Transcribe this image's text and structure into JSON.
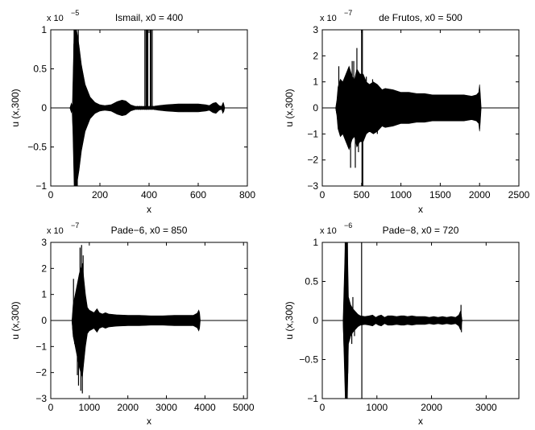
{
  "figure": {
    "background": "#ffffff",
    "ink": "#000000"
  },
  "chart_data": [
    {
      "type": "line",
      "title": "Ismail, x0 = 400",
      "xlabel": "x",
      "ylabel": "u (x,300)",
      "y_multiplier": {
        "base": "x 10",
        "exponent": "−5"
      },
      "xlim": [
        0,
        800
      ],
      "ylim": [
        -1,
        1
      ],
      "x_ticks": [
        0,
        200,
        400,
        600,
        800
      ],
      "x_tick_labels": [
        "0",
        "200",
        "400",
        "600",
        "800"
      ],
      "y_ticks": [
        -1,
        -0.5,
        0,
        0.5,
        1
      ],
      "y_tick_labels": [
        "−1",
        "−0.5",
        "0",
        "0.5",
        "1"
      ],
      "grid": false,
      "series": [
        {
          "style": "oscillating-envelope",
          "start": 78,
          "end": 708,
          "envelope": [
            [
              78,
              0
            ],
            [
              84,
              0.06
            ],
            [
              88,
              0.02
            ],
            [
              95,
              1
            ],
            [
              105,
              1
            ],
            [
              115,
              0.8
            ],
            [
              125,
              0.55
            ],
            [
              140,
              0.3
            ],
            [
              160,
              0.14
            ],
            [
              180,
              0.07
            ],
            [
              200,
              0.04
            ],
            [
              220,
              0.03
            ],
            [
              245,
              0.04
            ],
            [
              270,
              0.08
            ],
            [
              290,
              0.1
            ],
            [
              305,
              0.09
            ],
            [
              325,
              0.04
            ],
            [
              345,
              0.02
            ],
            [
              370,
              0.02
            ],
            [
              395,
              0.02
            ],
            [
              420,
              0.02
            ],
            [
              440,
              0.03
            ],
            [
              470,
              0.04
            ],
            [
              520,
              0.05
            ],
            [
              560,
              0.05
            ],
            [
              600,
              0.05
            ],
            [
              630,
              0.04
            ],
            [
              645,
              0.03
            ],
            [
              660,
              0.06
            ],
            [
              672,
              0.07
            ],
            [
              685,
              0.03
            ],
            [
              695,
              0.02
            ],
            [
              700,
              0.06
            ],
            [
              704,
              0.05
            ],
            [
              708,
              0
            ]
          ],
          "spikes": [
            [
              95,
              1
            ],
            [
              100,
              -1
            ],
            [
              103,
              1
            ],
            [
              108,
              -1
            ],
            [
              112,
              1
            ],
            [
              383,
              1
            ],
            [
              385,
              -0.02
            ],
            [
              388,
              1
            ],
            [
              392,
              1
            ],
            [
              395,
              1
            ],
            [
              400,
              -0.01
            ],
            [
              405,
              1
            ],
            [
              408,
              1
            ],
            [
              413,
              1
            ],
            [
              700,
              -0.07
            ],
            [
              702,
              0.07
            ]
          ]
        }
      ]
    },
    {
      "type": "line",
      "title": "de Frutos, x0 = 500",
      "xlabel": "x",
      "ylabel": "u (x,300)",
      "y_multiplier": {
        "base": "x 10",
        "exponent": "−7"
      },
      "xlim": [
        0,
        2500
      ],
      "ylim": [
        -3,
        3
      ],
      "x_ticks": [
        0,
        500,
        1000,
        1500,
        2000,
        2500
      ],
      "x_tick_labels": [
        "0",
        "500",
        "1000",
        "1500",
        "2000",
        "2500"
      ],
      "y_ticks": [
        -3,
        -2,
        -1,
        0,
        1,
        2,
        3
      ],
      "y_tick_labels": [
        "−3",
        "−2",
        "−1",
        "0",
        "1",
        "2",
        "3"
      ],
      "grid": false,
      "series": [
        {
          "style": "oscillating-envelope",
          "start": 170,
          "end": 2020,
          "envelope": [
            [
              170,
              0
            ],
            [
              185,
              0.3
            ],
            [
              200,
              0.8
            ],
            [
              230,
              1.1
            ],
            [
              260,
              1.0
            ],
            [
              300,
              1.3
            ],
            [
              340,
              1.6
            ],
            [
              380,
              1.2
            ],
            [
              410,
              1.1
            ],
            [
              440,
              1.5
            ],
            [
              480,
              1.3
            ],
            [
              520,
              1.3
            ],
            [
              560,
              1.0
            ],
            [
              600,
              0.9
            ],
            [
              650,
              1.0
            ],
            [
              700,
              0.9
            ],
            [
              760,
              0.7
            ],
            [
              800,
              0.75
            ],
            [
              900,
              0.7
            ],
            [
              1000,
              0.6
            ],
            [
              1100,
              0.6
            ],
            [
              1200,
              0.55
            ],
            [
              1300,
              0.55
            ],
            [
              1400,
              0.5
            ],
            [
              1500,
              0.5
            ],
            [
              1600,
              0.5
            ],
            [
              1700,
              0.5
            ],
            [
              1800,
              0.5
            ],
            [
              1900,
              0.45
            ],
            [
              1960,
              0.5
            ],
            [
              1990,
              0.6
            ],
            [
              2000,
              0.9
            ],
            [
              2008,
              0.6
            ],
            [
              2020,
              0
            ]
          ],
          "spikes": [
            [
              210,
              1.6
            ],
            [
              230,
              -1.0
            ],
            [
              330,
              -1.5
            ],
            [
              360,
              -2.3
            ],
            [
              380,
              1.8
            ],
            [
              400,
              1.8
            ],
            [
              420,
              -2.3
            ],
            [
              440,
              2.3
            ],
            [
              460,
              -1.7
            ],
            [
              500,
              3
            ],
            [
              505,
              -3
            ],
            [
              510,
              3
            ],
            [
              515,
              -3
            ],
            [
              560,
              1.2
            ],
            [
              640,
              1.1
            ],
            [
              700,
              -1.0
            ]
          ]
        }
      ]
    },
    {
      "type": "line",
      "title": "Pade−6, x0 = 850",
      "xlabel": "x",
      "ylabel": "u (x,300)",
      "y_multiplier": {
        "base": "x 10",
        "exponent": "−7"
      },
      "xlim": [
        0,
        5100
      ],
      "ylim": [
        -3,
        3
      ],
      "x_ticks": [
        0,
        1000,
        2000,
        3000,
        4000,
        5000
      ],
      "x_tick_labels": [
        "0",
        "1000",
        "2000",
        "3000",
        "4000",
        "5000"
      ],
      "y_ticks": [
        -3,
        -2,
        -1,
        0,
        1,
        2,
        3
      ],
      "y_tick_labels": [
        "−3",
        "−2",
        "−1",
        "0",
        "1",
        "2",
        "3"
      ],
      "grid": false,
      "series": [
        {
          "style": "oscillating-envelope",
          "start": 550,
          "end": 3880,
          "envelope": [
            [
              550,
              0
            ],
            [
              580,
              0.6
            ],
            [
              620,
              0.9
            ],
            [
              660,
              1.2
            ],
            [
              700,
              1.5
            ],
            [
              740,
              1.8
            ],
            [
              780,
              2.0
            ],
            [
              820,
              2.2
            ],
            [
              860,
              1.6
            ],
            [
              900,
              1.0
            ],
            [
              950,
              0.5
            ],
            [
              1000,
              0.4
            ],
            [
              1060,
              0.35
            ],
            [
              1120,
              0.3
            ],
            [
              1200,
              0.45
            ],
            [
              1260,
              0.3
            ],
            [
              1340,
              0.25
            ],
            [
              1420,
              0.3
            ],
            [
              1500,
              0.25
            ],
            [
              1700,
              0.22
            ],
            [
              2000,
              0.2
            ],
            [
              2300,
              0.2
            ],
            [
              2600,
              0.18
            ],
            [
              2900,
              0.18
            ],
            [
              3200,
              0.2
            ],
            [
              3500,
              0.2
            ],
            [
              3700,
              0.2
            ],
            [
              3800,
              0.28
            ],
            [
              3840,
              0.4
            ],
            [
              3860,
              0.3
            ],
            [
              3880,
              0
            ]
          ],
          "spikes": [
            [
              590,
              1.6
            ],
            [
              620,
              -0.9
            ],
            [
              690,
              -2.1
            ],
            [
              720,
              -2.5
            ],
            [
              760,
              2.8
            ],
            [
              780,
              -2.7
            ],
            [
              800,
              2.9
            ],
            [
              820,
              -2.8
            ],
            [
              840,
              2.5
            ],
            [
              870,
              -1.2
            ]
          ]
        }
      ]
    },
    {
      "type": "line",
      "title": "Pade−8, x0 = 720",
      "xlabel": "x",
      "ylabel": "u (x,300)",
      "y_multiplier": {
        "base": "x 10",
        "exponent": "−6"
      },
      "xlim": [
        0,
        3600
      ],
      "ylim": [
        -1,
        1
      ],
      "x_ticks": [
        0,
        1000,
        2000,
        3000
      ],
      "x_tick_labels": [
        "0",
        "1000",
        "2000",
        "3000"
      ],
      "y_ticks": [
        -1,
        -0.5,
        0,
        0.5,
        1
      ],
      "y_tick_labels": [
        "−1",
        "−0.5",
        "0",
        "0.5",
        "1"
      ],
      "grid": false,
      "series": [
        {
          "style": "oscillating-envelope",
          "start": 380,
          "end": 2560,
          "envelope": [
            [
              380,
              0
            ],
            [
              420,
              1
            ],
            [
              460,
              1
            ],
            [
              480,
              0.3
            ],
            [
              520,
              0.2
            ],
            [
              560,
              0.15
            ],
            [
              600,
              0.12
            ],
            [
              650,
              0.08
            ],
            [
              700,
              0.06
            ],
            [
              780,
              0.05
            ],
            [
              860,
              0.06
            ],
            [
              920,
              0.07
            ],
            [
              980,
              0.04
            ],
            [
              1030,
              0.06
            ],
            [
              1080,
              0.07
            ],
            [
              1140,
              0.04
            ],
            [
              1200,
              0.06
            ],
            [
              1280,
              0.06
            ],
            [
              1360,
              0.05
            ],
            [
              1440,
              0.06
            ],
            [
              1500,
              0.06
            ],
            [
              1560,
              0.05
            ],
            [
              1640,
              0.06
            ],
            [
              1720,
              0.05
            ],
            [
              1800,
              0.05
            ],
            [
              1880,
              0.05
            ],
            [
              1960,
              0.04
            ],
            [
              2040,
              0.05
            ],
            [
              2120,
              0.04
            ],
            [
              2200,
              0.05
            ],
            [
              2280,
              0.04
            ],
            [
              2360,
              0.05
            ],
            [
              2440,
              0.04
            ],
            [
              2500,
              0.07
            ],
            [
              2530,
              0.12
            ],
            [
              2545,
              0.08
            ],
            [
              2560,
              0
            ]
          ],
          "spikes": [
            [
              420,
              1
            ],
            [
              430,
              -1
            ],
            [
              440,
              1
            ],
            [
              450,
              -1
            ],
            [
              460,
              1
            ],
            [
              540,
              -0.3
            ],
            [
              560,
              0.3
            ],
            [
              590,
              -0.2
            ],
            [
              720,
              1
            ],
            [
              724,
              -1
            ],
            [
              2540,
              0.2
            ],
            [
              2548,
              -0.15
            ]
          ]
        }
      ]
    }
  ]
}
